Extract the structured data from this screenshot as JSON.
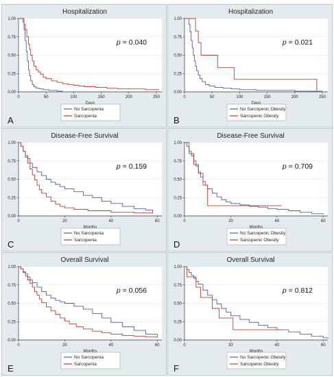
{
  "chart_data": [
    {
      "panel": "A",
      "type": "line",
      "title": "Hospitalization",
      "xlabel": "Days",
      "ylabel": "",
      "xlim": [
        0,
        260
      ],
      "ylim": [
        0,
        1
      ],
      "xticks": [
        "0",
        "50",
        "100",
        "150",
        "200",
        "250"
      ],
      "xtick_values": [
        0,
        50,
        100,
        150,
        200,
        250
      ],
      "yticks": [
        "0.00",
        "0.25",
        "0.50",
        "0.75",
        "1.00"
      ],
      "ytick_values": [
        0,
        0.25,
        0.5,
        0.75,
        1
      ],
      "p_label": "p",
      "p_value": "= 0.040",
      "series": [
        {
          "name": "No Sarcopenia",
          "color": "#4a5fa5",
          "x": [
            0,
            5,
            8,
            10,
            12,
            14,
            16,
            18,
            20,
            22,
            25,
            28,
            32,
            38,
            45,
            55,
            70,
            80
          ],
          "y": [
            1,
            1,
            0.95,
            0.85,
            0.7,
            0.55,
            0.42,
            0.3,
            0.22,
            0.15,
            0.1,
            0.07,
            0.05,
            0.04,
            0.03,
            0.02,
            0.01,
            0.01
          ]
        },
        {
          "name": "Sarcopenia",
          "color": "#c0392b",
          "x": [
            0,
            6,
            10,
            12,
            15,
            18,
            20,
            22,
            25,
            28,
            32,
            36,
            40,
            45,
            50,
            60,
            70,
            80,
            90,
            100,
            110,
            120,
            140,
            160,
            180,
            200,
            230,
            255
          ],
          "y": [
            1,
            1,
            0.92,
            0.85,
            0.75,
            0.65,
            0.58,
            0.5,
            0.42,
            0.35,
            0.3,
            0.27,
            0.24,
            0.2,
            0.18,
            0.15,
            0.13,
            0.11,
            0.1,
            0.09,
            0.08,
            0.07,
            0.06,
            0.05,
            0.04,
            0.04,
            0.03,
            0.03
          ]
        }
      ],
      "legend": [
        "No Sarcopenia",
        "Sarcopenia"
      ]
    },
    {
      "panel": "B",
      "type": "line",
      "title": "Hospitalization",
      "xlabel": "Days",
      "ylabel": "",
      "xlim": [
        0,
        260
      ],
      "ylim": [
        0,
        1
      ],
      "xticks": [
        "0",
        "50",
        "100",
        "150",
        "200",
        "250"
      ],
      "xtick_values": [
        0,
        50,
        100,
        150,
        200,
        250
      ],
      "yticks": [
        "0.00",
        "0.25",
        "0.50",
        "0.75",
        "1.00"
      ],
      "ytick_values": [
        0,
        0.25,
        0.5,
        0.75,
        1
      ],
      "p_label": "p",
      "p_value": "= 0.021",
      "series": [
        {
          "name": "No Sarcopenic Obesity",
          "color": "#4a5fa5",
          "x": [
            0,
            6,
            8,
            10,
            12,
            14,
            16,
            18,
            20,
            22,
            25,
            28,
            32,
            38,
            45,
            55,
            70,
            85,
            100,
            130,
            160,
            200,
            250
          ],
          "y": [
            1,
            1,
            0.92,
            0.82,
            0.7,
            0.6,
            0.5,
            0.42,
            0.35,
            0.29,
            0.23,
            0.18,
            0.14,
            0.1,
            0.08,
            0.06,
            0.05,
            0.04,
            0.03,
            0.02,
            0.02,
            0.01,
            0.01
          ]
        },
        {
          "name": "Sarcopenic Obesity",
          "color": "#c0392b",
          "x": [
            0,
            15,
            20,
            25,
            30,
            60,
            90,
            240
          ],
          "y": [
            1,
            1,
            0.83,
            0.67,
            0.5,
            0.33,
            0.17,
            0
          ]
        }
      ],
      "legend": [
        "No Sarcopenic Obesity",
        "Sarcopenic Obesity"
      ]
    },
    {
      "panel": "C",
      "type": "line",
      "title": "Disease-Free Survival",
      "xlabel": "Months",
      "ylabel": "",
      "xlim": [
        0,
        62
      ],
      "ylim": [
        0,
        1
      ],
      "xticks": [
        "0",
        "20",
        "40",
        "60"
      ],
      "xtick_values": [
        0,
        20,
        40,
        60
      ],
      "yticks": [
        "0.00",
        "0.25",
        "0.50",
        "0.75",
        "1.00"
      ],
      "ytick_values": [
        0,
        0.25,
        0.5,
        0.75,
        1
      ],
      "p_label": "p",
      "p_value": "= 0.159",
      "series": [
        {
          "name": "No Sarcopenia",
          "color": "#4a5fa5",
          "x": [
            0,
            1,
            2,
            3,
            4,
            5,
            6,
            8,
            10,
            12,
            14,
            16,
            18,
            20,
            24,
            28,
            32,
            36,
            40,
            45,
            50,
            55,
            58
          ],
          "y": [
            1,
            0.95,
            0.88,
            0.82,
            0.78,
            0.72,
            0.66,
            0.6,
            0.55,
            0.5,
            0.46,
            0.43,
            0.4,
            0.37,
            0.33,
            0.28,
            0.25,
            0.2,
            0.17,
            0.13,
            0.1,
            0.08,
            0.05
          ]
        },
        {
          "name": "Sarcopenia",
          "color": "#c0392b",
          "x": [
            0,
            1,
            2,
            3,
            4,
            5,
            6,
            7,
            8,
            9,
            10,
            12,
            14,
            16,
            18,
            20,
            24,
            30,
            40,
            50,
            58
          ],
          "y": [
            1,
            0.95,
            0.88,
            0.8,
            0.72,
            0.64,
            0.56,
            0.49,
            0.42,
            0.36,
            0.31,
            0.26,
            0.2,
            0.16,
            0.13,
            0.11,
            0.09,
            0.07,
            0.05,
            0.04,
            0.03
          ]
        }
      ],
      "legend": [
        "No Sarcopenia",
        "Sarcopenia"
      ]
    },
    {
      "panel": "D",
      "type": "line",
      "title": "Disease-Free Survival",
      "xlabel": "Months",
      "ylabel": "",
      "xlim": [
        0,
        62
      ],
      "ylim": [
        0,
        1
      ],
      "xticks": [
        "0",
        "20",
        "40",
        "60"
      ],
      "xtick_values": [
        0,
        20,
        40,
        60
      ],
      "yticks": [
        "0.00",
        "0.25",
        "0.50",
        "0.75",
        "1.00"
      ],
      "ytick_values": [
        0,
        0.25,
        0.5,
        0.75,
        1
      ],
      "p_label": "p",
      "p_value": "= 0.709",
      "series": [
        {
          "name": "No Sarcopenic Obesity",
          "color": "#4a5fa5",
          "x": [
            0,
            1,
            2,
            3,
            4,
            5,
            6,
            7,
            8,
            9,
            10,
            12,
            14,
            16,
            18,
            20,
            24,
            28,
            32,
            36,
            40,
            45,
            50,
            55,
            60
          ],
          "y": [
            1,
            0.95,
            0.88,
            0.82,
            0.75,
            0.68,
            0.6,
            0.53,
            0.47,
            0.42,
            0.37,
            0.31,
            0.26,
            0.22,
            0.19,
            0.17,
            0.15,
            0.13,
            0.12,
            0.1,
            0.09,
            0.07,
            0.05,
            0.03,
            0.02
          ]
        },
        {
          "name": "Sarcopenic Obesity",
          "color": "#c0392b",
          "x": [
            0,
            2,
            4,
            6,
            8,
            10,
            42
          ],
          "y": [
            1,
            0.85,
            0.7,
            0.58,
            0.42,
            0.14,
            0.14
          ]
        }
      ],
      "legend": [
        "No Sarcopenic Obesity",
        "Sarcopenic Obesity"
      ]
    },
    {
      "panel": "E",
      "type": "line",
      "title": "Overall Survival",
      "xlabel": "Months",
      "ylabel": "",
      "xlim": [
        0,
        62
      ],
      "ylim": [
        0,
        1
      ],
      "xticks": [
        "0",
        "20",
        "40",
        "60"
      ],
      "xtick_values": [
        0,
        20,
        40,
        60
      ],
      "yticks": [
        "0.00",
        "0.25",
        "0.50",
        "0.75",
        "1.00"
      ],
      "ytick_values": [
        0,
        0.25,
        0.5,
        0.75,
        1
      ],
      "p_label": "p",
      "p_value": "= 0.056",
      "series": [
        {
          "name": "No Sarcopenia",
          "color": "#4a5fa5",
          "x": [
            0,
            1,
            2,
            3,
            4,
            5,
            6,
            8,
            10,
            12,
            14,
            16,
            18,
            20,
            24,
            28,
            32,
            36,
            40,
            45,
            50,
            55,
            60
          ],
          "y": [
            1,
            0.97,
            0.93,
            0.9,
            0.86,
            0.82,
            0.78,
            0.72,
            0.66,
            0.61,
            0.57,
            0.54,
            0.52,
            0.5,
            0.46,
            0.42,
            0.36,
            0.3,
            0.24,
            0.18,
            0.13,
            0.08,
            0.04
          ]
        },
        {
          "name": "Sarcopenia",
          "color": "#c0392b",
          "x": [
            0,
            1,
            2,
            3,
            4,
            5,
            6,
            7,
            8,
            9,
            10,
            12,
            14,
            16,
            18,
            20,
            22,
            25,
            28,
            32,
            36,
            40,
            45,
            50,
            55,
            60
          ],
          "y": [
            1,
            0.97,
            0.92,
            0.87,
            0.82,
            0.77,
            0.72,
            0.66,
            0.61,
            0.56,
            0.51,
            0.45,
            0.4,
            0.35,
            0.3,
            0.26,
            0.22,
            0.18,
            0.15,
            0.12,
            0.1,
            0.08,
            0.06,
            0.05,
            0.04,
            0.03
          ]
        }
      ],
      "legend": [
        "No Sarcopenia",
        "Sarcopenia"
      ]
    },
    {
      "panel": "F",
      "type": "line",
      "title": "Overall Survival",
      "xlabel": "Months",
      "ylabel": "",
      "xlim": [
        0,
        62
      ],
      "ylim": [
        0,
        1
      ],
      "xticks": [
        "0",
        "20",
        "40",
        "60"
      ],
      "xtick_values": [
        0,
        20,
        40,
        60
      ],
      "yticks": [
        "0.00",
        "0.25",
        "0.50",
        "0.75",
        "1.00"
      ],
      "ytick_values": [
        0,
        0.25,
        0.5,
        0.75,
        1
      ],
      "p_label": "p",
      "p_value": "= 0.812",
      "series": [
        {
          "name": "No Sarcopenic Obesity",
          "color": "#4a5fa5",
          "x": [
            0,
            1,
            2,
            3,
            4,
            5,
            6,
            8,
            10,
            12,
            14,
            16,
            18,
            20,
            24,
            28,
            32,
            36,
            40,
            45,
            50,
            55,
            60,
            62
          ],
          "y": [
            1,
            0.96,
            0.92,
            0.88,
            0.84,
            0.8,
            0.76,
            0.68,
            0.61,
            0.55,
            0.49,
            0.43,
            0.38,
            0.33,
            0.28,
            0.24,
            0.2,
            0.17,
            0.14,
            0.11,
            0.08,
            0.05,
            0.03,
            0.02
          ]
        },
        {
          "name": "Sarcopenic Obesity",
          "color": "#c0392b",
          "x": [
            0,
            1,
            3,
            5,
            7,
            9,
            12,
            15,
            18,
            21,
            42
          ],
          "y": [
            1,
            0.86,
            0.86,
            0.72,
            0.58,
            0.58,
            0.43,
            0.3,
            0.3,
            0.14,
            0.14
          ]
        }
      ],
      "legend": [
        "No Sarcopenic Obesity",
        "Sarcopenic Obesity"
      ]
    }
  ]
}
